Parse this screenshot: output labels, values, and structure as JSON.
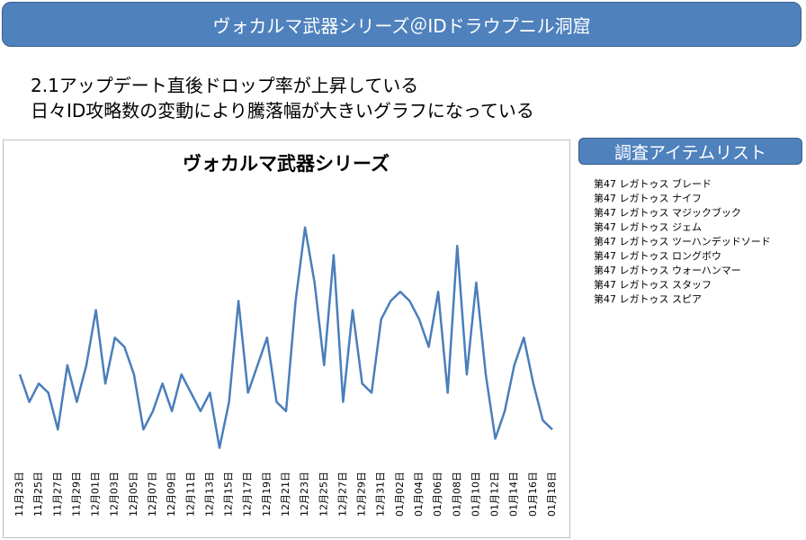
{
  "header": {
    "title": "ヴォカルマ武器シリーズ＠IDドラウプニル洞窟"
  },
  "notes": [
    "2.1アップデート直後ドロップ率が上昇している",
    "日々ID攻略数の変動により騰落幅が大きいグラフになっている"
  ],
  "sidebar": {
    "title": "調査アイテムリスト",
    "items": [
      "第47 レガトゥス ブレード",
      "第47 レガトゥス ナイフ",
      "第47 レガトゥス マジックブック",
      "第47 レガトゥス ジェム",
      "第47 レガトゥス ツーハンデッドソード",
      "第47 レガトゥス ロングボウ",
      "第47 レガトゥス ウォーハンマー",
      "第47 レガトゥス スタッフ",
      "第47 レガトゥス スピア"
    ]
  },
  "chart_data": {
    "type": "line",
    "title": "ヴォカルマ武器シリーズ",
    "color": "#4a7ebb",
    "categories": [
      "11月23日",
      null,
      "11月25日",
      null,
      "11月27日",
      null,
      "11月29日",
      null,
      "12月01日",
      null,
      "12月03日",
      null,
      "12月05日",
      null,
      "12月07日",
      null,
      "12月09日",
      null,
      "12月11日",
      null,
      "12月13日",
      null,
      "12月15日",
      null,
      "12月17日",
      null,
      "12月19日",
      null,
      "12月21日",
      null,
      "12月23日",
      null,
      "12月25日",
      null,
      "12月27日",
      null,
      "12月29日",
      null,
      "12月31日",
      null,
      "01月02日",
      null,
      "01月04日",
      null,
      "01月06日",
      null,
      "01月08日",
      null,
      "01月10日",
      null,
      "01月12日",
      null,
      "01月14日",
      null,
      "01月16日",
      null,
      "01月18日"
    ],
    "values": [
      10,
      7,
      9,
      8,
      4,
      11,
      7,
      11,
      17,
      9,
      14,
      13,
      10,
      4,
      6,
      9,
      6,
      10,
      8,
      6,
      8,
      2,
      7,
      18,
      8,
      11,
      14,
      7,
      6,
      18,
      26,
      20,
      11,
      23,
      7,
      17,
      9,
      8,
      16,
      18,
      19,
      18,
      16,
      13,
      19,
      8,
      24,
      10,
      20,
      10,
      3,
      6,
      11,
      14,
      9,
      5,
      4
    ],
    "ylim": [
      0,
      30
    ]
  }
}
